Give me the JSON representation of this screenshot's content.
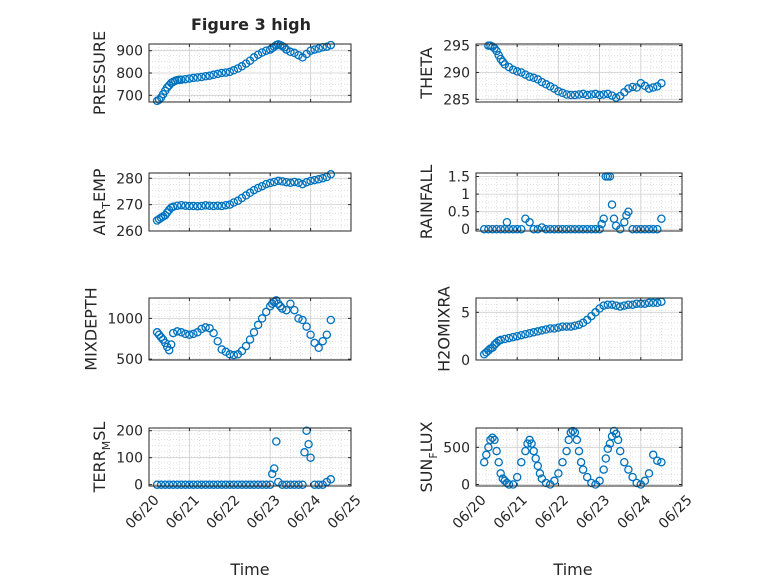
{
  "figure": {
    "title": "Figure 3 high",
    "marker_color": "#0072BD"
  },
  "chart_data": [
    {
      "type": "scatter",
      "title": "Figure 3 high",
      "ylabel": "PRESSURE",
      "xlabel": "",
      "xlim": [
        0,
        5
      ],
      "ylim": [
        670,
        930
      ],
      "yticks": [
        700,
        800,
        900
      ],
      "ytick_labels": [
        "700",
        "800",
        "900"
      ],
      "xticks": [
        0,
        1,
        2,
        3,
        4,
        5
      ],
      "xtick_labels": [
        "06/20",
        "06/21",
        "06/22",
        "06/23",
        "06/24",
        "06/25"
      ],
      "show_xtick_labels": false,
      "grid": true,
      "x": [
        0.2,
        0.25,
        0.3,
        0.35,
        0.4,
        0.45,
        0.5,
        0.55,
        0.6,
        0.65,
        0.7,
        0.75,
        0.8,
        0.9,
        1.0,
        1.1,
        1.2,
        1.3,
        1.4,
        1.5,
        1.6,
        1.7,
        1.8,
        1.9,
        2.0,
        2.1,
        2.2,
        2.3,
        2.4,
        2.5,
        2.6,
        2.7,
        2.8,
        2.9,
        3.0,
        3.05,
        3.1,
        3.15,
        3.2,
        3.25,
        3.3,
        3.35,
        3.4,
        3.5,
        3.6,
        3.7,
        3.8,
        3.9,
        4.0,
        4.1,
        4.2,
        4.3,
        4.4,
        4.5
      ],
      "y": [
        675,
        680,
        690,
        705,
        720,
        735,
        745,
        755,
        760,
        765,
        768,
        770,
        770,
        772,
        775,
        778,
        780,
        782,
        785,
        788,
        792,
        796,
        800,
        802,
        805,
        812,
        820,
        830,
        842,
        855,
        870,
        882,
        892,
        900,
        905,
        912,
        918,
        925,
        928,
        925,
        920,
        915,
        905,
        895,
        890,
        880,
        870,
        885,
        900,
        905,
        910,
        915,
        918,
        925
      ]
    },
    {
      "type": "scatter",
      "ylabel": "THETA",
      "xlabel": "",
      "xlim": [
        0,
        5
      ],
      "ylim": [
        284.5,
        295.3
      ],
      "yticks": [
        285,
        290,
        295
      ],
      "ytick_labels": [
        "285",
        "290",
        "295"
      ],
      "xticks": [
        0,
        1,
        2,
        3,
        4,
        5
      ],
      "xtick_labels": [
        "06/20",
        "06/21",
        "06/22",
        "06/23",
        "06/24",
        "06/25"
      ],
      "show_xtick_labels": false,
      "grid": true,
      "x": [
        0.3,
        0.35,
        0.4,
        0.45,
        0.5,
        0.55,
        0.6,
        0.65,
        0.7,
        0.8,
        0.9,
        1.0,
        1.1,
        1.2,
        1.3,
        1.4,
        1.5,
        1.6,
        1.7,
        1.8,
        1.9,
        2.0,
        2.1,
        2.2,
        2.3,
        2.4,
        2.5,
        2.6,
        2.7,
        2.8,
        2.9,
        3.0,
        3.1,
        3.2,
        3.3,
        3.4,
        3.5,
        3.6,
        3.7,
        3.8,
        3.9,
        4.0,
        4.1,
        4.2,
        4.3,
        4.4,
        4.5
      ],
      "y": [
        295,
        295,
        294.8,
        294.5,
        294,
        293.2,
        292.5,
        292,
        291.5,
        291,
        290.5,
        290.2,
        290,
        289.6,
        289.2,
        289,
        288.7,
        288.2,
        287.8,
        287.4,
        287,
        286.5,
        286.2,
        285.9,
        285.8,
        285.8,
        285.9,
        286,
        285.8,
        285.9,
        286,
        285.8,
        285.9,
        286,
        285.7,
        285.3,
        285.6,
        286.3,
        287,
        287.3,
        287.2,
        288,
        287.5,
        287,
        287.2,
        287.4,
        288
      ]
    },
    {
      "type": "scatter",
      "ylabel": "AIR_TEMP",
      "ylabel_main": "AIR",
      "ylabel_sub": "T",
      "ylabel_tail": "EMP",
      "xlabel": "",
      "xlim": [
        0,
        5
      ],
      "ylim": [
        260,
        282
      ],
      "yticks": [
        260,
        270,
        280
      ],
      "ytick_labels": [
        "260",
        "270",
        "280"
      ],
      "xticks": [
        0,
        1,
        2,
        3,
        4,
        5
      ],
      "xtick_labels": [
        "06/20",
        "06/21",
        "06/22",
        "06/23",
        "06/24",
        "06/25"
      ],
      "show_xtick_labels": false,
      "grid": true,
      "x": [
        0.2,
        0.25,
        0.3,
        0.35,
        0.4,
        0.45,
        0.5,
        0.55,
        0.6,
        0.7,
        0.8,
        0.9,
        1.0,
        1.1,
        1.2,
        1.3,
        1.4,
        1.5,
        1.6,
        1.7,
        1.8,
        1.9,
        2.0,
        2.1,
        2.2,
        2.3,
        2.4,
        2.5,
        2.6,
        2.7,
        2.8,
        2.9,
        3.0,
        3.1,
        3.2,
        3.3,
        3.4,
        3.5,
        3.6,
        3.7,
        3.8,
        3.9,
        4.0,
        4.1,
        4.2,
        4.3,
        4.4,
        4.5
      ],
      "y": [
        264,
        264.5,
        265,
        265.5,
        266,
        267,
        268,
        268.8,
        269.2,
        269.6,
        269.8,
        269.6,
        269.5,
        269.5,
        269.4,
        269.5,
        269.7,
        269.6,
        269.5,
        269.6,
        269.5,
        269.8,
        270,
        270.8,
        271.5,
        272.5,
        273.5,
        274.5,
        275.5,
        276.3,
        277,
        277.8,
        278.2,
        278.6,
        279,
        278.8,
        278.5,
        278.3,
        278.6,
        278.3,
        277.8,
        278.5,
        279,
        279.3,
        279.6,
        280,
        280.5,
        281.5
      ]
    },
    {
      "type": "scatter",
      "ylabel": "RAINFALL",
      "xlabel": "",
      "xlim": [
        0,
        5
      ],
      "ylim": [
        -0.05,
        1.6
      ],
      "yticks": [
        0,
        0.5,
        1,
        1.5
      ],
      "ytick_labels": [
        "0",
        "0.5",
        "1",
        "1.5"
      ],
      "xticks": [
        0,
        1,
        2,
        3,
        4,
        5
      ],
      "xtick_labels": [
        "06/20",
        "06/21",
        "06/22",
        "06/23",
        "06/24",
        "06/25"
      ],
      "show_xtick_labels": false,
      "grid": true,
      "x": [
        0.2,
        0.3,
        0.4,
        0.5,
        0.6,
        0.7,
        0.75,
        0.8,
        0.9,
        1.0,
        1.1,
        1.2,
        1.3,
        1.4,
        1.5,
        1.6,
        1.7,
        1.8,
        1.9,
        2.0,
        2.1,
        2.2,
        2.3,
        2.4,
        2.5,
        2.6,
        2.7,
        2.8,
        2.9,
        3.0,
        3.05,
        3.1,
        3.15,
        3.2,
        3.25,
        3.3,
        3.35,
        3.4,
        3.5,
        3.6,
        3.65,
        3.7,
        3.8,
        3.9,
        4.0,
        4.1,
        4.2,
        4.3,
        4.4,
        4.5
      ],
      "y": [
        0,
        0,
        0,
        0,
        0,
        0,
        0.2,
        0,
        0,
        0,
        0,
        0.3,
        0.2,
        0,
        0,
        0.05,
        0,
        0,
        0,
        0,
        0,
        0,
        0,
        0,
        0,
        0,
        0,
        0,
        0,
        0,
        0.15,
        0.3,
        1.5,
        1.5,
        1.5,
        0.7,
        0.3,
        0.1,
        0,
        0.2,
        0.4,
        0.5,
        0,
        0,
        0,
        0,
        0,
        0,
        0,
        0.3
      ]
    },
    {
      "type": "scatter",
      "ylabel": "MIXDEPTH",
      "xlabel": "",
      "xlim": [
        0,
        5
      ],
      "ylim": [
        490,
        1250
      ],
      "yticks": [
        500,
        1000
      ],
      "ytick_labels": [
        "500",
        "1000"
      ],
      "xticks": [
        0,
        1,
        2,
        3,
        4,
        5
      ],
      "xtick_labels": [
        "06/20",
        "06/21",
        "06/22",
        "06/23",
        "06/24",
        "06/25"
      ],
      "show_xtick_labels": false,
      "grid": true,
      "x": [
        0.2,
        0.25,
        0.3,
        0.35,
        0.4,
        0.45,
        0.5,
        0.55,
        0.6,
        0.7,
        0.8,
        0.9,
        1.0,
        1.1,
        1.2,
        1.3,
        1.4,
        1.5,
        1.6,
        1.7,
        1.8,
        1.9,
        2.0,
        2.1,
        2.2,
        2.3,
        2.4,
        2.5,
        2.6,
        2.7,
        2.8,
        2.9,
        3.0,
        3.05,
        3.1,
        3.15,
        3.2,
        3.25,
        3.3,
        3.4,
        3.5,
        3.6,
        3.7,
        3.8,
        3.9,
        4.0,
        4.1,
        4.2,
        4.3,
        4.4,
        4.5
      ],
      "y": [
        830,
        800,
        770,
        740,
        700,
        650,
        610,
        680,
        820,
        840,
        830,
        810,
        800,
        810,
        830,
        870,
        890,
        880,
        820,
        720,
        620,
        590,
        560,
        550,
        560,
        600,
        660,
        740,
        830,
        920,
        1000,
        1080,
        1150,
        1180,
        1200,
        1220,
        1180,
        1150,
        1120,
        1100,
        1180,
        1100,
        1000,
        980,
        900,
        800,
        700,
        640,
        720,
        800,
        980
      ]
    },
    {
      "type": "scatter",
      "ylabel": "H2OMIXRA",
      "xlabel": "",
      "xlim": [
        0,
        5
      ],
      "ylim": [
        0,
        6.5
      ],
      "yticks": [
        0,
        5
      ],
      "ytick_labels": [
        "0",
        "5"
      ],
      "xticks": [
        0,
        1,
        2,
        3,
        4,
        5
      ],
      "xtick_labels": [
        "06/20",
        "06/21",
        "06/22",
        "06/23",
        "06/24",
        "06/25"
      ],
      "show_xtick_labels": false,
      "grid": true,
      "x": [
        0.2,
        0.25,
        0.3,
        0.35,
        0.4,
        0.45,
        0.5,
        0.55,
        0.6,
        0.7,
        0.8,
        0.9,
        1.0,
        1.1,
        1.2,
        1.3,
        1.4,
        1.5,
        1.6,
        1.7,
        1.8,
        1.9,
        2.0,
        2.1,
        2.2,
        2.3,
        2.4,
        2.5,
        2.6,
        2.7,
        2.8,
        2.9,
        3.0,
        3.1,
        3.2,
        3.3,
        3.4,
        3.5,
        3.6,
        3.7,
        3.8,
        3.9,
        4.0,
        4.1,
        4.2,
        4.3,
        4.4,
        4.5
      ],
      "y": [
        0.6,
        0.8,
        1.0,
        1.2,
        1.3,
        1.6,
        1.8,
        2.0,
        2.1,
        2.2,
        2.3,
        2.4,
        2.5,
        2.6,
        2.7,
        2.8,
        2.9,
        3.0,
        3.1,
        3.2,
        3.3,
        3.3,
        3.4,
        3.5,
        3.5,
        3.5,
        3.6,
        3.7,
        3.9,
        4.2,
        4.6,
        5.0,
        5.4,
        5.7,
        5.8,
        5.8,
        5.7,
        5.6,
        5.7,
        5.8,
        5.8,
        5.9,
        5.9,
        5.9,
        6.0,
        6.0,
        6.0,
        6.1
      ]
    },
    {
      "type": "scatter",
      "ylabel": "TERR_MSL",
      "ylabel_main": "TERR",
      "ylabel_sub": "M",
      "ylabel_tail": "SL",
      "xlabel": "Time",
      "xlim": [
        0,
        5
      ],
      "ylim": [
        -5,
        210
      ],
      "yticks": [
        0,
        100,
        200
      ],
      "ytick_labels": [
        "0",
        "100",
        "200"
      ],
      "xticks": [
        0,
        1,
        2,
        3,
        4,
        5
      ],
      "xtick_labels": [
        "06/20",
        "06/21",
        "06/22",
        "06/23",
        "06/24",
        "06/25"
      ],
      "show_xtick_labels": true,
      "grid": true,
      "x": [
        0.2,
        0.3,
        0.4,
        0.5,
        0.6,
        0.7,
        0.8,
        0.9,
        1.0,
        1.1,
        1.2,
        1.3,
        1.4,
        1.5,
        1.6,
        1.7,
        1.8,
        1.9,
        2.0,
        2.1,
        2.2,
        2.3,
        2.4,
        2.5,
        2.6,
        2.7,
        2.8,
        2.9,
        3.0,
        3.05,
        3.1,
        3.15,
        3.2,
        3.3,
        3.4,
        3.5,
        3.6,
        3.7,
        3.8,
        3.85,
        3.9,
        3.95,
        4.0,
        4.1,
        4.2,
        4.3,
        4.4,
        4.5
      ],
      "y": [
        0,
        0,
        0,
        0,
        0,
        0,
        0,
        0,
        0,
        0,
        0,
        0,
        0,
        0,
        0,
        0,
        0,
        0,
        0,
        0,
        0,
        0,
        0,
        0,
        0,
        0,
        0,
        0,
        0,
        40,
        60,
        160,
        10,
        0,
        0,
        0,
        0,
        0,
        0,
        120,
        200,
        150,
        100,
        0,
        0,
        0,
        10,
        20
      ]
    },
    {
      "type": "scatter",
      "ylabel": "SUN_FLUX",
      "ylabel_main": "SUN",
      "ylabel_sub": "F",
      "ylabel_tail": "LUX",
      "xlabel": "Time",
      "xlim": [
        0,
        5
      ],
      "ylim": [
        -20,
        760
      ],
      "yticks": [
        0,
        500
      ],
      "ytick_labels": [
        "0",
        "500"
      ],
      "xticks": [
        0,
        1,
        2,
        3,
        4,
        5
      ],
      "xtick_labels": [
        "06/20",
        "06/21",
        "06/22",
        "06/23",
        "06/24",
        "06/25"
      ],
      "show_xtick_labels": true,
      "grid": true,
      "x": [
        0.2,
        0.25,
        0.3,
        0.35,
        0.4,
        0.45,
        0.5,
        0.55,
        0.6,
        0.65,
        0.7,
        0.75,
        0.8,
        0.9,
        1.0,
        1.1,
        1.2,
        1.25,
        1.3,
        1.35,
        1.4,
        1.45,
        1.5,
        1.55,
        1.6,
        1.7,
        1.8,
        1.9,
        2.0,
        2.1,
        2.2,
        2.25,
        2.3,
        2.35,
        2.4,
        2.45,
        2.5,
        2.55,
        2.6,
        2.7,
        2.8,
        2.9,
        3.0,
        3.1,
        3.15,
        3.2,
        3.25,
        3.3,
        3.35,
        3.4,
        3.45,
        3.5,
        3.6,
        3.7,
        3.8,
        3.9,
        4.0,
        4.1,
        4.2,
        4.3,
        4.4,
        4.5
      ],
      "y": [
        300,
        400,
        500,
        600,
        630,
        600,
        450,
        300,
        150,
        80,
        50,
        20,
        0,
        0,
        100,
        300,
        450,
        550,
        600,
        550,
        450,
        350,
        250,
        150,
        80,
        20,
        0,
        50,
        150,
        300,
        450,
        600,
        700,
        720,
        700,
        600,
        450,
        300,
        200,
        100,
        20,
        0,
        50,
        200,
        350,
        480,
        550,
        650,
        720,
        680,
        600,
        450,
        300,
        200,
        100,
        20,
        0,
        50,
        150,
        400,
        320,
        300
      ]
    }
  ]
}
